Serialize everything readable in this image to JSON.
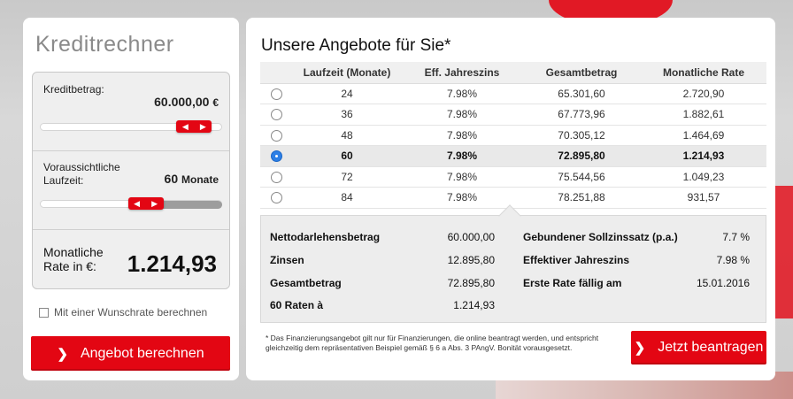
{
  "calculator": {
    "title": "Kreditrechner",
    "amount_label": "Kreditbetrag:",
    "amount_value": "60.000,00",
    "amount_unit": "€",
    "term_label_line1": "Voraussichtliche",
    "term_label_line2": "Laufzeit:",
    "term_value": "60",
    "term_unit": "Monate",
    "rate_label_line1": "Monatliche",
    "rate_label_line2": "Rate in €:",
    "rate_value": "1.214,93",
    "wish_rate_label": "Mit einer Wunschrate berechnen",
    "calculate_button": "Angebot berechnen",
    "amount_slider_level": 0.93,
    "term_slider_level": 0.6
  },
  "offers": {
    "title": "Unsere Angebote für Sie*",
    "columns": [
      "Laufzeit (Monate)",
      "Eff. Jahreszins",
      "Gesamtbetrag",
      "Monatliche Rate"
    ],
    "rows": [
      {
        "term": "24",
        "apr": "7.98%",
        "total": "65.301,60",
        "monthly": "2.720,90",
        "selected": false
      },
      {
        "term": "36",
        "apr": "7.98%",
        "total": "67.773,96",
        "monthly": "1.882,61",
        "selected": false
      },
      {
        "term": "48",
        "apr": "7.98%",
        "total": "70.305,12",
        "monthly": "1.464,69",
        "selected": false
      },
      {
        "term": "60",
        "apr": "7.98%",
        "total": "72.895,80",
        "monthly": "1.214,93",
        "selected": true
      },
      {
        "term": "72",
        "apr": "7.98%",
        "total": "75.544,56",
        "monthly": "1.049,23",
        "selected": false
      },
      {
        "term": "84",
        "apr": "7.98%",
        "total": "78.251,88",
        "monthly": "931,57",
        "selected": false
      }
    ]
  },
  "summary": {
    "net_loan_label": "Nettodarlehensbetrag",
    "net_loan_value": "60.000,00",
    "interest_label": "Zinsen",
    "interest_value": "12.895,80",
    "total_label": "Gesamtbetrag",
    "total_value": "72.895,80",
    "installments_label": "60 Raten à",
    "installments_value": "1.214,93",
    "fixed_rate_label": "Gebundener Sollzinssatz (p.a.)",
    "fixed_rate_value": "7.7 %",
    "eff_rate_label": "Effektiver Jahreszins",
    "eff_rate_value": "7.98 %",
    "first_rate_label": "Erste Rate fällig am",
    "first_rate_value": "15.01.2016"
  },
  "footnote": "* Das Finanzierungsangebot gilt nur für Finanzierungen, die online beantragt werden, und entspricht gleichzeitig dem repräsentativen Beispiel gemäß § 6 a Abs. 3 PAngV. Bonität vorausgesetzt.",
  "apply_button": "Jetzt beantragen",
  "colors": {
    "accent": "#e30613",
    "radio_selected": "#2c7fe6"
  }
}
